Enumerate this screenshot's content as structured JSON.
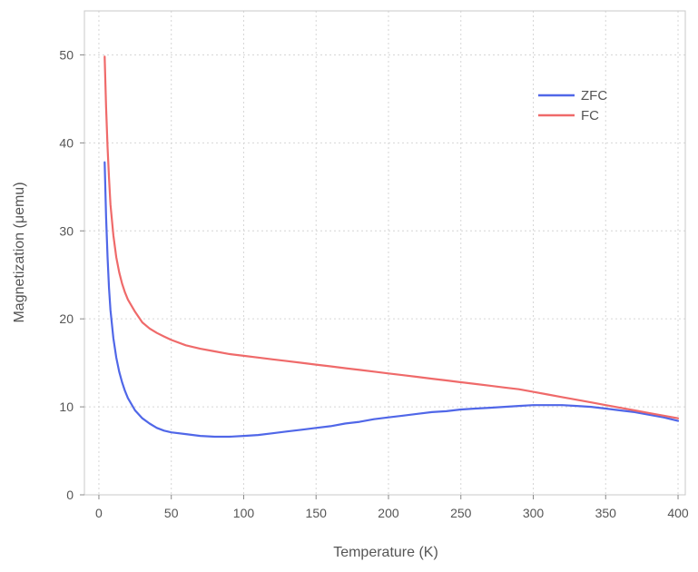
{
  "chart_data": {
    "type": "line",
    "title": "",
    "xlabel": "Temperature (K)",
    "ylabel": "Magnetization (μemu)",
    "xlim": [
      -10,
      405
    ],
    "ylim": [
      0,
      55
    ],
    "xticks": [
      0,
      50,
      100,
      150,
      200,
      250,
      300,
      350,
      400
    ],
    "yticks": [
      0,
      10,
      20,
      30,
      40,
      50
    ],
    "grid": true,
    "legend_position": "top-right",
    "series": [
      {
        "name": "ZFC",
        "color": "#5067e8",
        "x": [
          4,
          5,
          6,
          7,
          8,
          10,
          12,
          14,
          16,
          18,
          20,
          25,
          30,
          35,
          40,
          45,
          50,
          60,
          70,
          80,
          90,
          100,
          110,
          120,
          130,
          140,
          150,
          160,
          170,
          180,
          190,
          200,
          210,
          220,
          230,
          240,
          250,
          260,
          270,
          280,
          290,
          300,
          310,
          320,
          330,
          340,
          350,
          360,
          370,
          380,
          390,
          400
        ],
        "y": [
          37.8,
          31.5,
          27.0,
          23.5,
          21.0,
          17.8,
          15.6,
          14.0,
          12.8,
          11.8,
          11.0,
          9.6,
          8.7,
          8.1,
          7.6,
          7.3,
          7.1,
          6.9,
          6.7,
          6.6,
          6.6,
          6.7,
          6.8,
          7.0,
          7.2,
          7.4,
          7.6,
          7.8,
          8.1,
          8.3,
          8.6,
          8.8,
          9.0,
          9.2,
          9.4,
          9.5,
          9.7,
          9.8,
          9.9,
          10.0,
          10.1,
          10.2,
          10.2,
          10.2,
          10.1,
          10.0,
          9.8,
          9.6,
          9.4,
          9.1,
          8.8,
          8.4
        ]
      },
      {
        "name": "FC",
        "color": "#ef6a6a",
        "x": [
          4,
          5,
          6,
          7,
          8,
          10,
          12,
          14,
          16,
          18,
          20,
          25,
          30,
          35,
          40,
          45,
          50,
          60,
          70,
          80,
          90,
          100,
          110,
          120,
          130,
          140,
          150,
          160,
          170,
          180,
          190,
          200,
          210,
          220,
          230,
          240,
          250,
          260,
          270,
          280,
          290,
          300,
          310,
          320,
          330,
          340,
          350,
          360,
          370,
          380,
          390,
          400
        ],
        "y": [
          49.8,
          44.0,
          39.5,
          36.0,
          33.0,
          29.5,
          27.0,
          25.3,
          24.0,
          23.0,
          22.2,
          20.8,
          19.6,
          18.9,
          18.4,
          18.0,
          17.6,
          17.0,
          16.6,
          16.3,
          16.0,
          15.8,
          15.6,
          15.4,
          15.2,
          15.0,
          14.8,
          14.6,
          14.4,
          14.2,
          14.0,
          13.8,
          13.6,
          13.4,
          13.2,
          13.0,
          12.8,
          12.6,
          12.4,
          12.2,
          12.0,
          11.7,
          11.4,
          11.1,
          10.8,
          10.5,
          10.2,
          9.9,
          9.6,
          9.3,
          9.0,
          8.7
        ]
      }
    ]
  }
}
